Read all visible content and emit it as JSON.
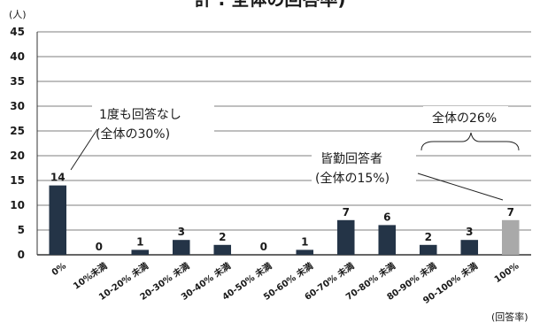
{
  "chart_data": {
    "type": "bar",
    "title": "計 : 全体の回答率)",
    "y_unit_label": "(人)",
    "x_unit_label": "(回答率)",
    "ylim": [
      0,
      45
    ],
    "y_ticks": [
      0,
      5,
      10,
      15,
      20,
      25,
      30,
      35,
      40,
      45
    ],
    "grid": true,
    "categories": [
      "0%",
      "10%未満",
      "10-20% 未満",
      "20-30% 未満",
      "30-40% 未満",
      "40-50% 未満",
      "50-60% 未満",
      "60-70% 未満",
      "70-80% 未満",
      "80-90% 未満",
      "90-100% 未満",
      "100%"
    ],
    "values": [
      14,
      0,
      1,
      3,
      2,
      0,
      1,
      7,
      6,
      2,
      3,
      7
    ],
    "value_labels": [
      "14",
      "0",
      "1",
      "3",
      "2",
      "0",
      "1",
      "7",
      "6",
      "2",
      "3",
      "7"
    ],
    "colors": {
      "bar": "#243447",
      "highlight_bar": "#a9a9a9",
      "axis": "#333333",
      "grid": "#555555"
    },
    "highlight_index": 11,
    "annotations": {
      "no_answer": {
        "line1": "1度も回答なし",
        "line2": "(全体の30%)"
      },
      "perfect": {
        "line1": "皆勤回答者",
        "line2": "(全体の15%)"
      },
      "total": {
        "text": "全体の26%"
      }
    }
  }
}
